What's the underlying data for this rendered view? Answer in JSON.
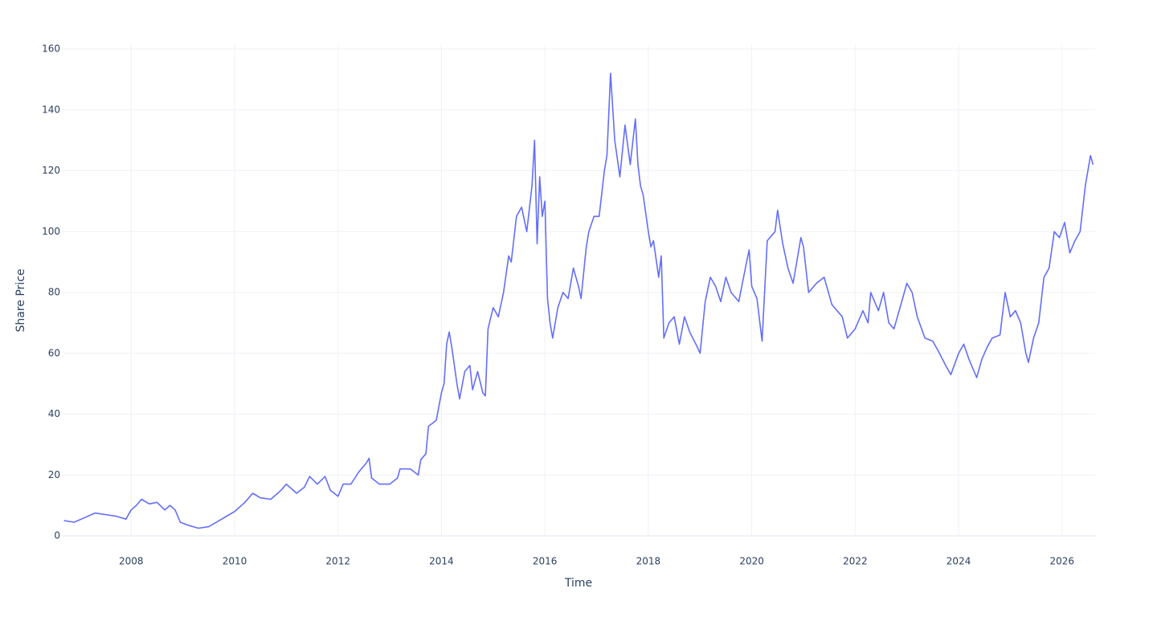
{
  "chart_data": {
    "type": "line",
    "x_label": "Time",
    "y_label": "Share Price",
    "xlim": [
      2006.66,
      2026.64
    ],
    "xticks": [
      2008,
      2010,
      2012,
      2014,
      2016,
      2018,
      2020,
      2022,
      2024,
      2026
    ],
    "ylim": [
      0,
      160
    ],
    "yticks": [
      0,
      20,
      40,
      60,
      80,
      100,
      120,
      140,
      160
    ],
    "grid": true,
    "series": [
      {
        "name": "Share Price",
        "color": "#636efa",
        "x": [
          2006.7,
          2006.9,
          2007.1,
          2007.3,
          2007.5,
          2007.7,
          2007.9,
          2008.0,
          2008.1,
          2008.2,
          2008.35,
          2008.5,
          2008.65,
          2008.75,
          2008.85,
          2008.95,
          2009.1,
          2009.3,
          2009.5,
          2009.7,
          2009.9,
          2010.0,
          2010.2,
          2010.35,
          2010.5,
          2010.7,
          2010.9,
          2011.0,
          2011.2,
          2011.35,
          2011.45,
          2011.6,
          2011.75,
          2011.85,
          2012.0,
          2012.1,
          2012.25,
          2012.4,
          2012.55,
          2012.6,
          2012.65,
          2012.8,
          2013.0,
          2013.15,
          2013.2,
          2013.4,
          2013.55,
          2013.6,
          2013.7,
          2013.75,
          2013.9,
          2014.0,
          2014.05,
          2014.1,
          2014.15,
          2014.2,
          2014.3,
          2014.35,
          2014.45,
          2014.55,
          2014.6,
          2014.7,
          2014.8,
          2014.85,
          2014.9,
          2015.0,
          2015.1,
          2015.2,
          2015.3,
          2015.35,
          2015.45,
          2015.55,
          2015.65,
          2015.75,
          2015.8,
          2015.85,
          2015.9,
          2015.95,
          2016.0,
          2016.05,
          2016.1,
          2016.15,
          2016.25,
          2016.35,
          2016.45,
          2016.55,
          2016.65,
          2016.7,
          2016.8,
          2016.85,
          2016.95,
          2017.05,
          2017.15,
          2017.2,
          2017.27,
          2017.35,
          2017.45,
          2017.55,
          2017.65,
          2017.75,
          2017.8,
          2017.85,
          2017.9,
          2018.0,
          2018.05,
          2018.1,
          2018.2,
          2018.25,
          2018.3,
          2018.4,
          2018.5,
          2018.6,
          2018.7,
          2018.8,
          2018.95,
          2019.0,
          2019.1,
          2019.2,
          2019.3,
          2019.4,
          2019.5,
          2019.6,
          2019.75,
          2019.9,
          2019.95,
          2020.0,
          2020.1,
          2020.2,
          2020.3,
          2020.45,
          2020.5,
          2020.6,
          2020.7,
          2020.8,
          2020.95,
          2021.0,
          2021.1,
          2021.25,
          2021.4,
          2021.55,
          2021.75,
          2021.85,
          2022.0,
          2022.15,
          2022.25,
          2022.3,
          2022.45,
          2022.55,
          2022.65,
          2022.75,
          2022.9,
          2023.0,
          2023.1,
          2023.2,
          2023.35,
          2023.5,
          2023.6,
          2023.75,
          2023.85,
          2024.0,
          2024.1,
          2024.2,
          2024.35,
          2024.45,
          2024.55,
          2024.65,
          2024.8,
          2024.9,
          2025.0,
          2025.1,
          2025.2,
          2025.3,
          2025.35,
          2025.45,
          2025.55,
          2025.65,
          2025.75,
          2025.85,
          2025.95,
          2026.05,
          2026.15,
          2026.25,
          2026.35,
          2026.45,
          2026.55,
          2026.6
        ],
        "values": [
          5,
          4.5,
          6,
          7.5,
          7,
          6.5,
          5.5,
          8.5,
          10,
          12,
          10.5,
          11,
          8.5,
          10,
          8.5,
          4.5,
          3.5,
          2.5,
          3,
          5,
          7,
          8,
          11,
          14,
          12.5,
          12,
          15,
          17,
          14,
          16,
          19.5,
          17,
          19.5,
          15,
          13,
          17,
          17,
          21,
          24,
          25.5,
          19,
          17,
          17,
          19,
          22,
          22,
          20,
          25,
          27,
          36,
          38,
          47,
          50,
          63,
          67,
          62,
          50,
          45,
          54,
          56,
          48,
          54,
          47,
          46,
          68,
          75,
          72,
          80,
          92,
          90,
          105,
          108,
          100,
          115,
          130,
          96,
          118,
          105,
          110,
          78,
          70,
          65,
          75,
          80,
          78,
          88,
          82,
          78,
          95,
          100,
          105,
          105,
          120,
          125,
          152,
          130,
          118,
          135,
          122,
          137,
          122,
          115,
          112,
          100,
          95,
          97,
          85,
          92,
          65,
          70,
          72,
          63,
          72,
          67,
          62,
          60,
          77,
          85,
          82,
          77,
          85,
          80,
          77,
          90,
          94,
          82,
          78,
          64,
          97,
          100,
          107,
          96,
          88,
          83,
          98,
          95,
          80,
          83,
          85,
          76,
          72,
          65,
          68,
          74,
          70,
          80,
          74,
          80,
          70,
          68,
          77,
          83,
          80,
          72,
          65,
          64,
          61,
          56,
          53,
          60,
          63,
          58,
          52,
          58,
          62,
          65,
          66,
          80,
          72,
          74,
          70,
          60,
          57,
          65,
          70,
          85,
          88,
          100,
          98,
          103,
          93,
          97,
          100,
          115,
          125,
          122
        ]
      }
    ]
  }
}
